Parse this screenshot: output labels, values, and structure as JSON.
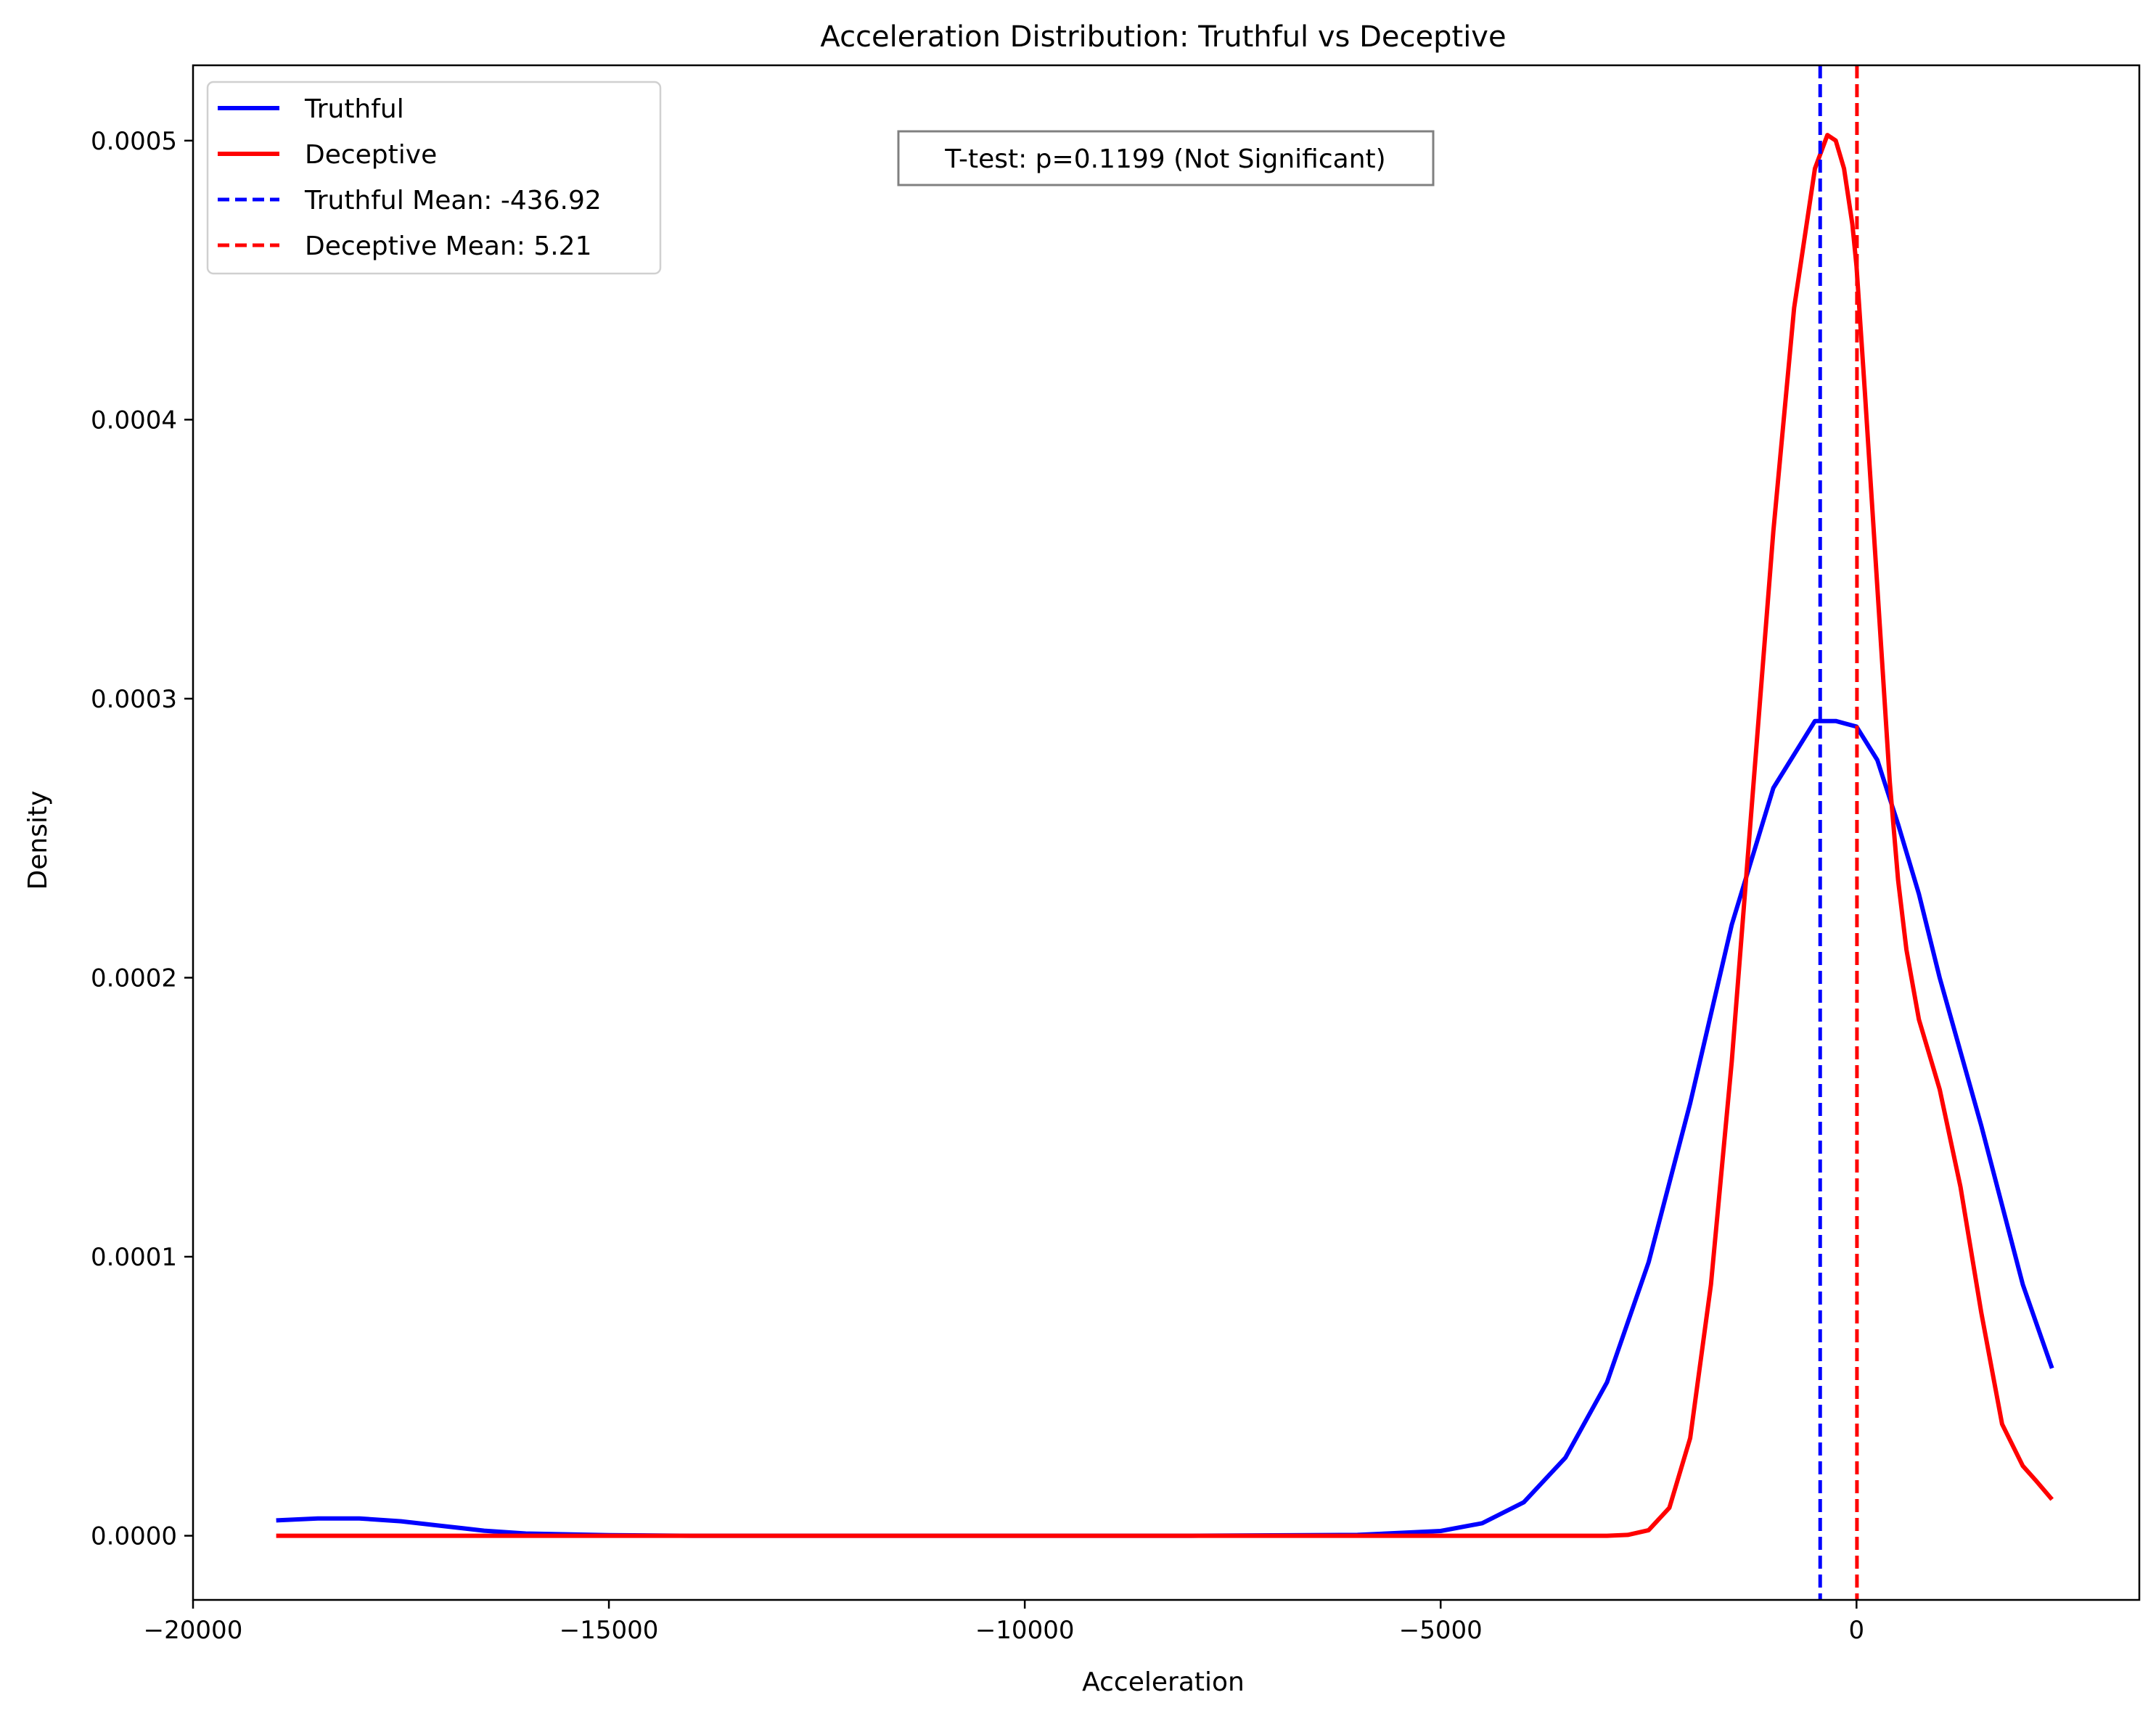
{
  "chart_data": {
    "type": "line",
    "title": "Acceleration Distribution: Truthful vs Deceptive",
    "xlabel": "Acceleration",
    "ylabel": "Density",
    "xlim": [
      -20000,
      3400
    ],
    "ylim": [
      -2.3e-05,
      0.000527
    ],
    "xticks": [
      -20000,
      -15000,
      -10000,
      -5000,
      0
    ],
    "xtick_labels": [
      "−20000",
      "−15000",
      "−10000",
      "−5000",
      "0"
    ],
    "yticks": [
      0.0,
      0.0001,
      0.0002,
      0.0003,
      0.0004,
      0.0005
    ],
    "ytick_labels": [
      "0.0000",
      "0.0001",
      "0.0002",
      "0.0003",
      "0.0004",
      "0.0005"
    ],
    "grid": false,
    "legend_position": "top-left",
    "series": [
      {
        "name": "Truthful",
        "color": "#0000ff",
        "style": "solid",
        "x": [
          -19000,
          -18500,
          -18000,
          -17500,
          -17000,
          -16500,
          -16000,
          -15000,
          -14000,
          -12000,
          -10000,
          -8000,
          -6000,
          -5000,
          -4500,
          -4000,
          -3500,
          -3000,
          -2500,
          -2000,
          -1500,
          -1000,
          -500,
          -250,
          0,
          250,
          500,
          750,
          1000,
          1500,
          2000,
          2350
        ],
        "y": [
          5.5e-06,
          6.2e-06,
          6.2e-06,
          5.2e-06,
          3.5e-06,
          1.8e-06,
          8e-07,
          2e-07,
          0.0,
          0.0,
          0.0,
          0.0,
          3e-07,
          1.7e-06,
          4.5e-06,
          1.2e-05,
          2.8e-05,
          5.5e-05,
          9.8e-05,
          0.000155,
          0.000219,
          0.000268,
          0.000292,
          0.000292,
          0.00029,
          0.000278,
          0.000255,
          0.00023,
          0.0002,
          0.000147,
          9e-05,
          6e-05
        ]
      },
      {
        "name": "Deceptive",
        "color": "#ff0000",
        "style": "solid",
        "x": [
          -19000,
          -15000,
          -10000,
          -5000,
          -3000,
          -2750,
          -2500,
          -2250,
          -2000,
          -1750,
          -1500,
          -1250,
          -1000,
          -750,
          -500,
          -350,
          -250,
          -150,
          -50,
          0,
          100,
          250,
          400,
          500,
          600,
          750,
          900,
          1000,
          1250,
          1500,
          1750,
          2000,
          2150,
          2350
        ],
        "y": [
          0.0,
          0.0,
          0.0,
          0.0,
          0.0,
          3e-07,
          2e-06,
          1e-05,
          3.5e-05,
          9e-05,
          0.00017,
          0.000265,
          0.00036,
          0.00044,
          0.00049,
          0.000502,
          0.0005,
          0.00049,
          0.00047,
          0.000455,
          0.00041,
          0.00034,
          0.00027,
          0.000235,
          0.00021,
          0.000185,
          0.00017,
          0.00016,
          0.000125,
          8e-05,
          4e-05,
          2.5e-05,
          2e-05,
          1.3e-05
        ]
      }
    ],
    "vlines": [
      {
        "name": "Truthful Mean: -436.92",
        "x": -436.92,
        "color": "#0000ff",
        "style": "dashed"
      },
      {
        "name": "Deceptive Mean: 5.21",
        "x": 5.21,
        "color": "#ff0000",
        "style": "dashed"
      }
    ],
    "annotation": "T-test: p=0.1199 (Not Significant)"
  }
}
